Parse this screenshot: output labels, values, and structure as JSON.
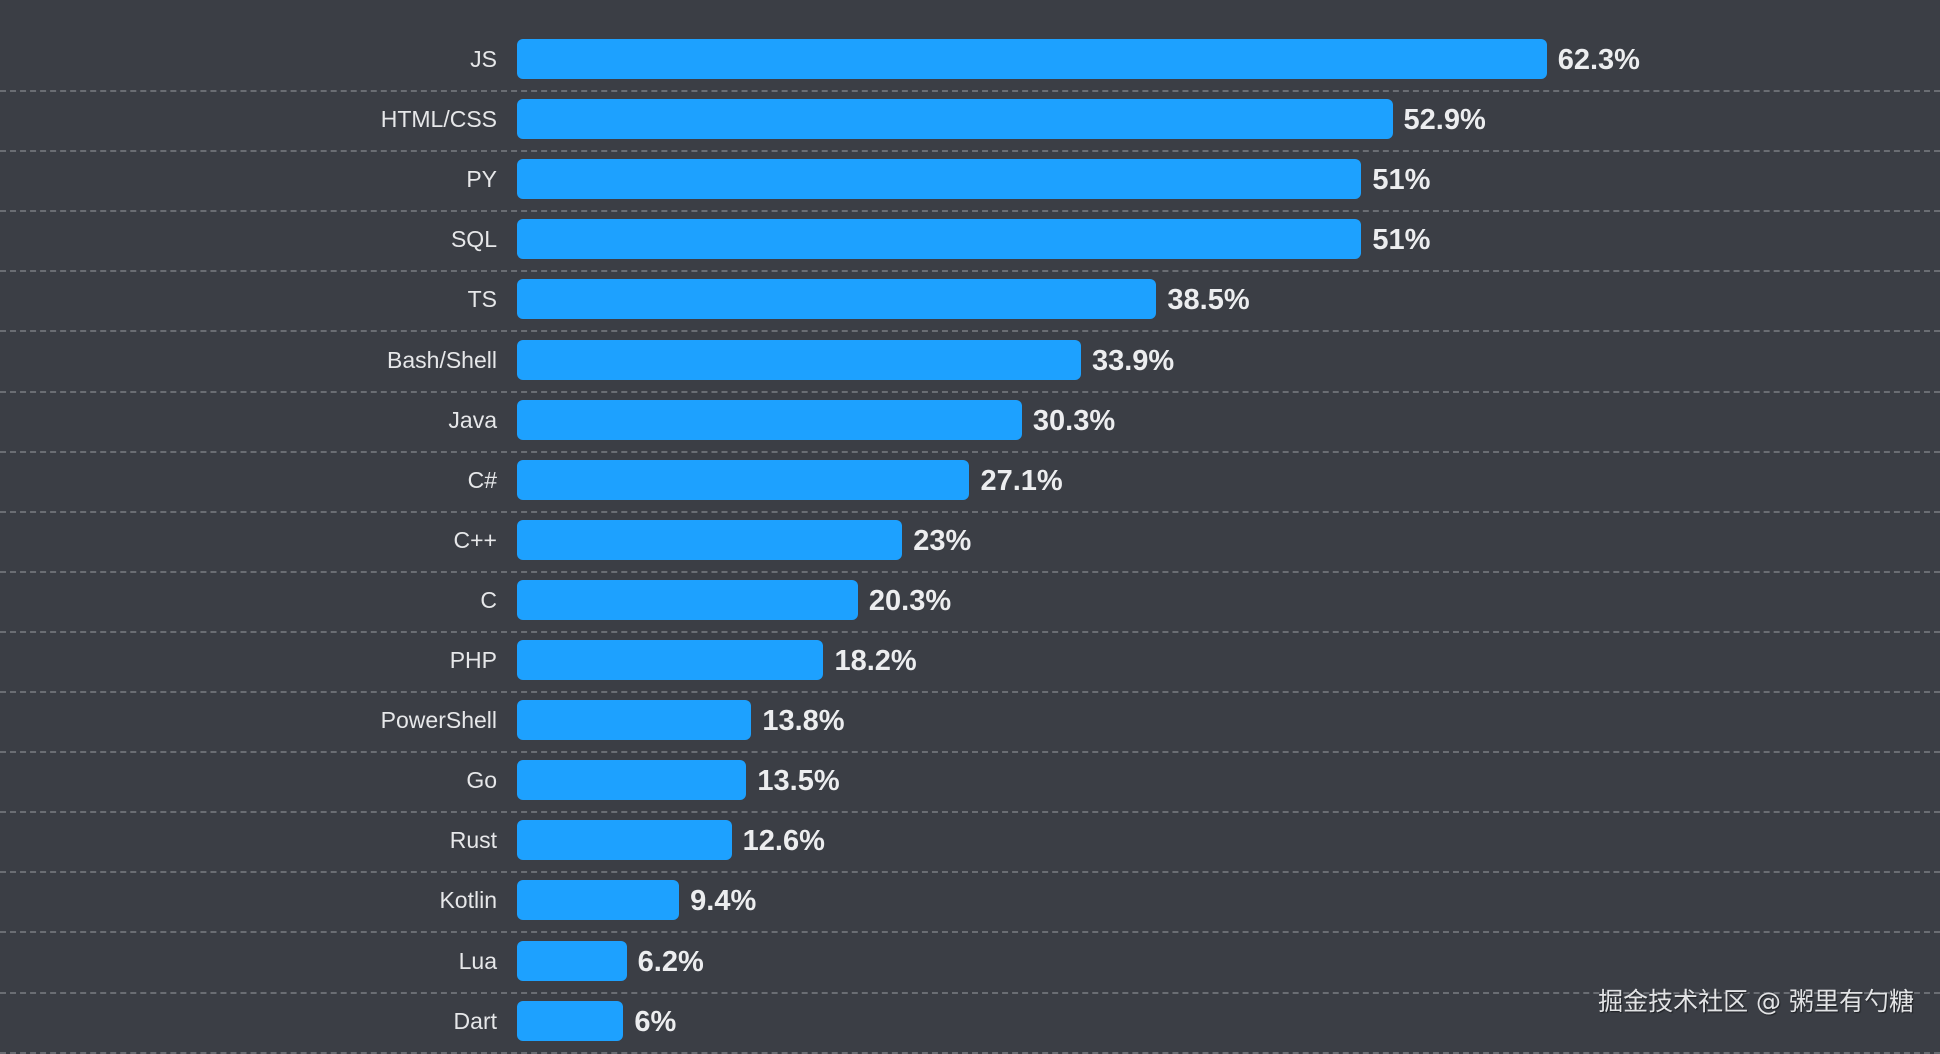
{
  "chart_data": {
    "type": "bar",
    "orientation": "horizontal",
    "title": "",
    "xlabel": "",
    "ylabel": "",
    "categories": [
      "JS",
      "HTML/CSS",
      "PY",
      "SQL",
      "TS",
      "Bash/Shell",
      "Java",
      "C#",
      "C++",
      "C",
      "PHP",
      "PowerShell",
      "Go",
      "Rust",
      "Kotlin",
      "Lua",
      "Dart"
    ],
    "values": [
      62.3,
      52.9,
      51,
      51,
      38.5,
      33.9,
      30.3,
      27.1,
      23,
      20.3,
      18.2,
      13.8,
      13.5,
      12.6,
      9.4,
      6.2,
      6
    ],
    "value_labels": [
      "62.3%",
      "52.9%",
      "51%",
      "51%",
      "38.5%",
      "33.9%",
      "30.3%",
      "27.1%",
      "23%",
      "20.3%",
      "18.2%",
      "13.8%",
      "13.5%",
      "12.6%",
      "9.4%",
      "6.2%",
      "6%"
    ],
    "unit": "%",
    "grid": "horizontal dashed separators",
    "legend": "none",
    "bar_color": "#1da1ff",
    "background_color": "#3b3e45"
  },
  "watermark": "掘金技术社区 @ 粥里有勺糖"
}
